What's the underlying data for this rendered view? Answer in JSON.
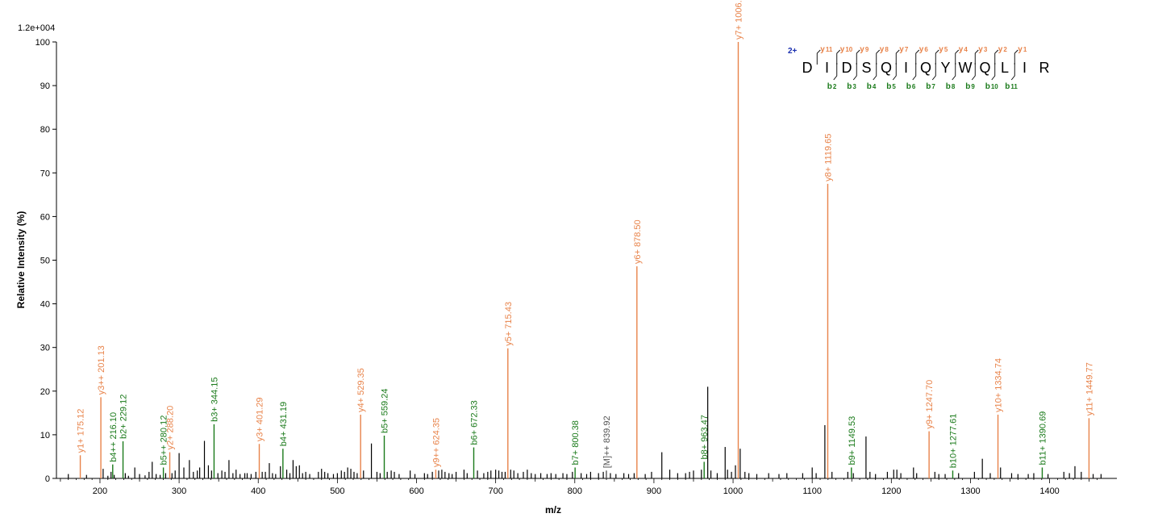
{
  "chart_data": {
    "type": "bar",
    "title": "",
    "xlabel": "m/z",
    "ylabel": "Relative   Intensity (%)",
    "scale_label": "1.2e+004",
    "xlim": [
      145,
      1485
    ],
    "ylim": [
      0,
      100
    ],
    "x_ticks": [
      200,
      300,
      400,
      500,
      600,
      700,
      800,
      900,
      1000,
      1100,
      1200,
      1300,
      1400
    ],
    "y_ticks": [
      0,
      10,
      20,
      30,
      40,
      50,
      60,
      70,
      80,
      90,
      100
    ],
    "colors": {
      "y": "#e8834a",
      "b": "#1a7a1a",
      "precursor": "#555555",
      "other": "#000000",
      "charge": "#1a2fb0"
    },
    "labeled_peaks": [
      {
        "mz": 175.12,
        "intensity": 5.3,
        "type": "y",
        "label": "y1+ 175.12"
      },
      {
        "mz": 201.13,
        "intensity": 18.6,
        "type": "y",
        "label": "y3++ 201.13"
      },
      {
        "mz": 216.1,
        "intensity": 3.2,
        "type": "b",
        "label": "b4++ 216.10"
      },
      {
        "mz": 229.12,
        "intensity": 8.5,
        "type": "b",
        "label": "b2+ 229.12"
      },
      {
        "mz": 280.12,
        "intensity": 2.5,
        "type": "b",
        "label": "b5++ 280.12"
      },
      {
        "mz": 288.2,
        "intensity": 6.0,
        "type": "y",
        "label": "y2+ 288.20"
      },
      {
        "mz": 344.15,
        "intensity": 12.4,
        "type": "b",
        "label": "b3+ 344.15"
      },
      {
        "mz": 401.29,
        "intensity": 7.9,
        "type": "y",
        "label": "y3+ 401.29"
      },
      {
        "mz": 431.19,
        "intensity": 6.8,
        "type": "b",
        "label": "b4+ 431.19"
      },
      {
        "mz": 529.35,
        "intensity": 14.6,
        "type": "y",
        "label": "y4+ 529.35"
      },
      {
        "mz": 559.24,
        "intensity": 9.8,
        "type": "b",
        "label": "b5+ 559.24"
      },
      {
        "mz": 624.35,
        "intensity": 2.0,
        "type": "y",
        "label": "y9++ 624.35"
      },
      {
        "mz": 672.33,
        "intensity": 7.1,
        "type": "b",
        "label": "b6+ 672.33"
      },
      {
        "mz": 715.43,
        "intensity": 29.8,
        "type": "y",
        "label": "y5+ 715.43"
      },
      {
        "mz": 800.38,
        "intensity": 2.5,
        "type": "b",
        "label": "b7+ 800.38"
      },
      {
        "mz": 839.92,
        "intensity": 1.8,
        "type": "precursor",
        "label": "[M]++ 839.92"
      },
      {
        "mz": 878.5,
        "intensity": 48.6,
        "type": "y",
        "label": "y6+ 878.50"
      },
      {
        "mz": 963.47,
        "intensity": 3.8,
        "type": "b",
        "label": "b8+ 963.47"
      },
      {
        "mz": 1006.56,
        "intensity": 100,
        "type": "y",
        "label": "y7+ 1006.56"
      },
      {
        "mz": 1119.65,
        "intensity": 67.5,
        "type": "y",
        "label": "y8+ 1119.65"
      },
      {
        "mz": 1149.53,
        "intensity": 2.5,
        "type": "b",
        "label": "b9+ 1149.53"
      },
      {
        "mz": 1247.7,
        "intensity": 10.8,
        "type": "y",
        "label": "y9+ 1247.70"
      },
      {
        "mz": 1277.61,
        "intensity": 1.8,
        "type": "b",
        "label": "b10+ 1277.61"
      },
      {
        "mz": 1334.74,
        "intensity": 14.6,
        "type": "y",
        "label": "y10+ 1334.74"
      },
      {
        "mz": 1390.69,
        "intensity": 2.5,
        "type": "b",
        "label": "b11+ 1390.69"
      },
      {
        "mz": 1449.77,
        "intensity": 13.8,
        "type": "y",
        "label": "y11+ 1449.77"
      }
    ],
    "other_peaks": [
      [
        160,
        1.0
      ],
      [
        183,
        0.8
      ],
      [
        204,
        2.2
      ],
      [
        210,
        0.6
      ],
      [
        214,
        1.5
      ],
      [
        218,
        0.8
      ],
      [
        232,
        1.2
      ],
      [
        236,
        0.6
      ],
      [
        244,
        2.5
      ],
      [
        250,
        1.0
      ],
      [
        257,
        0.7
      ],
      [
        262,
        1.5
      ],
      [
        266,
        3.8
      ],
      [
        271,
        1.0
      ],
      [
        276,
        0.8
      ],
      [
        283,
        1.2
      ],
      [
        291,
        1.2
      ],
      [
        295,
        1.8
      ],
      [
        300,
        5.8
      ],
      [
        306,
        2.5
      ],
      [
        313,
        4.2
      ],
      [
        318,
        1.5
      ],
      [
        323,
        1.8
      ],
      [
        326,
        2.5
      ],
      [
        332,
        8.6
      ],
      [
        337,
        3.0
      ],
      [
        341,
        1.8
      ],
      [
        349,
        1.2
      ],
      [
        354,
        1.8
      ],
      [
        358,
        1.5
      ],
      [
        363,
        4.2
      ],
      [
        368,
        1.2
      ],
      [
        372,
        2.0
      ],
      [
        377,
        1.0
      ],
      [
        383,
        1.2
      ],
      [
        386,
        1.2
      ],
      [
        391,
        1.0
      ],
      [
        397,
        1.5
      ],
      [
        405,
        1.5
      ],
      [
        409,
        1.5
      ],
      [
        414,
        3.5
      ],
      [
        418,
        1.2
      ],
      [
        422,
        1.0
      ],
      [
        428,
        2.8
      ],
      [
        436,
        2.0
      ],
      [
        440,
        1.2
      ],
      [
        444,
        4.2
      ],
      [
        448,
        2.8
      ],
      [
        452,
        3.0
      ],
      [
        456,
        1.2
      ],
      [
        460,
        1.5
      ],
      [
        465,
        1.0
      ],
      [
        476,
        1.5
      ],
      [
        480,
        2.2
      ],
      [
        484,
        1.5
      ],
      [
        488,
        1.2
      ],
      [
        495,
        1.0
      ],
      [
        500,
        1.2
      ],
      [
        505,
        1.8
      ],
      [
        509,
        1.5
      ],
      [
        513,
        2.5
      ],
      [
        517,
        2.2
      ],
      [
        521,
        1.5
      ],
      [
        525,
        1.2
      ],
      [
        533,
        1.8
      ],
      [
        543,
        8.0
      ],
      [
        550,
        1.5
      ],
      [
        554,
        1.2
      ],
      [
        563,
        1.5
      ],
      [
        568,
        1.8
      ],
      [
        572,
        1.5
      ],
      [
        578,
        1.0
      ],
      [
        592,
        1.8
      ],
      [
        598,
        1.0
      ],
      [
        610,
        1.2
      ],
      [
        614,
        1.0
      ],
      [
        620,
        1.5
      ],
      [
        628,
        1.8
      ],
      [
        632,
        2.0
      ],
      [
        636,
        1.5
      ],
      [
        641,
        1.2
      ],
      [
        645,
        1.0
      ],
      [
        650,
        1.5
      ],
      [
        660,
        2.0
      ],
      [
        664,
        1.2
      ],
      [
        677,
        1.8
      ],
      [
        685,
        1.2
      ],
      [
        690,
        1.5
      ],
      [
        694,
        1.8
      ],
      [
        700,
        2.0
      ],
      [
        704,
        1.8
      ],
      [
        708,
        1.5
      ],
      [
        712,
        1.5
      ],
      [
        719,
        2.0
      ],
      [
        723,
        1.8
      ],
      [
        728,
        1.2
      ],
      [
        735,
        1.5
      ],
      [
        740,
        2.0
      ],
      [
        745,
        1.2
      ],
      [
        750,
        1.0
      ],
      [
        757,
        1.2
      ],
      [
        765,
        1.0
      ],
      [
        770,
        1.2
      ],
      [
        776,
        1.0
      ],
      [
        785,
        1.2
      ],
      [
        790,
        1.0
      ],
      [
        797,
        1.5
      ],
      [
        808,
        1.2
      ],
      [
        815,
        1.0
      ],
      [
        820,
        1.5
      ],
      [
        830,
        1.2
      ],
      [
        836,
        1.5
      ],
      [
        845,
        1.2
      ],
      [
        852,
        1.0
      ],
      [
        862,
        1.2
      ],
      [
        868,
        1.0
      ],
      [
        875,
        1.2
      ],
      [
        889,
        1.0
      ],
      [
        897,
        1.5
      ],
      [
        910,
        6.0
      ],
      [
        920,
        2.0
      ],
      [
        930,
        1.2
      ],
      [
        940,
        1.2
      ],
      [
        945,
        1.5
      ],
      [
        950,
        1.8
      ],
      [
        960,
        2.0
      ],
      [
        968,
        21.0
      ],
      [
        972,
        1.8
      ],
      [
        980,
        1.2
      ],
      [
        990,
        7.2
      ],
      [
        993,
        2.0
      ],
      [
        998,
        1.5
      ],
      [
        1003,
        3.0
      ],
      [
        1009,
        6.8
      ],
      [
        1015,
        1.5
      ],
      [
        1020,
        1.2
      ],
      [
        1030,
        1.0
      ],
      [
        1045,
        1.2
      ],
      [
        1058,
        1.0
      ],
      [
        1068,
        1.2
      ],
      [
        1088,
        1.2
      ],
      [
        1100,
        2.5
      ],
      [
        1105,
        1.2
      ],
      [
        1116,
        12.2
      ],
      [
        1125,
        1.5
      ],
      [
        1145,
        1.5
      ],
      [
        1152,
        1.2
      ],
      [
        1168,
        9.6
      ],
      [
        1173,
        1.5
      ],
      [
        1180,
        1.0
      ],
      [
        1195,
        1.5
      ],
      [
        1203,
        2.0
      ],
      [
        1207,
        2.0
      ],
      [
        1212,
        1.2
      ],
      [
        1228,
        2.5
      ],
      [
        1232,
        1.2
      ],
      [
        1255,
        1.5
      ],
      [
        1260,
        1.0
      ],
      [
        1268,
        1.0
      ],
      [
        1285,
        1.2
      ],
      [
        1305,
        1.5
      ],
      [
        1315,
        4.5
      ],
      [
        1325,
        1.2
      ],
      [
        1338,
        2.5
      ],
      [
        1352,
        1.2
      ],
      [
        1360,
        1.0
      ],
      [
        1373,
        1.0
      ],
      [
        1380,
        1.2
      ],
      [
        1398,
        1.0
      ],
      [
        1418,
        1.5
      ],
      [
        1425,
        1.2
      ],
      [
        1432,
        2.8
      ],
      [
        1440,
        1.5
      ],
      [
        1455,
        1.0
      ],
      [
        1465,
        1.0
      ]
    ],
    "annotation": {
      "charge": "2+",
      "sequence": [
        "D",
        "I",
        "D",
        "S",
        "Q",
        "I",
        "Q",
        "Y",
        "W",
        "Q",
        "L",
        "I",
        "R"
      ],
      "y_ions": [
        {
          "ion": "y",
          "n": "11",
          "after": 1
        },
        {
          "ion": "y",
          "n": "10",
          "after": 2
        },
        {
          "ion": "y",
          "n": "9",
          "after": 3
        },
        {
          "ion": "y",
          "n": "8",
          "after": 4
        },
        {
          "ion": "y",
          "n": "7",
          "after": 5
        },
        {
          "ion": "y",
          "n": "6",
          "after": 6
        },
        {
          "ion": "y",
          "n": "5",
          "after": 7
        },
        {
          "ion": "y",
          "n": "4",
          "after": 8
        },
        {
          "ion": "y",
          "n": "3",
          "after": 9
        },
        {
          "ion": "y",
          "n": "2",
          "after": 10
        },
        {
          "ion": "y",
          "n": "1",
          "after": 11
        }
      ],
      "b_ions": [
        {
          "ion": "b",
          "n": "2",
          "after": 1
        },
        {
          "ion": "b",
          "n": "3",
          "after": 2
        },
        {
          "ion": "b",
          "n": "4",
          "after": 3
        },
        {
          "ion": "b",
          "n": "5",
          "after": 4
        },
        {
          "ion": "b",
          "n": "6",
          "after": 5
        },
        {
          "ion": "b",
          "n": "7",
          "after": 6
        },
        {
          "ion": "b",
          "n": "8",
          "after": 7
        },
        {
          "ion": "b",
          "n": "9",
          "after": 8
        },
        {
          "ion": "b",
          "n": "10",
          "after": 9
        },
        {
          "ion": "b",
          "n": "11",
          "after": 10
        }
      ]
    }
  }
}
